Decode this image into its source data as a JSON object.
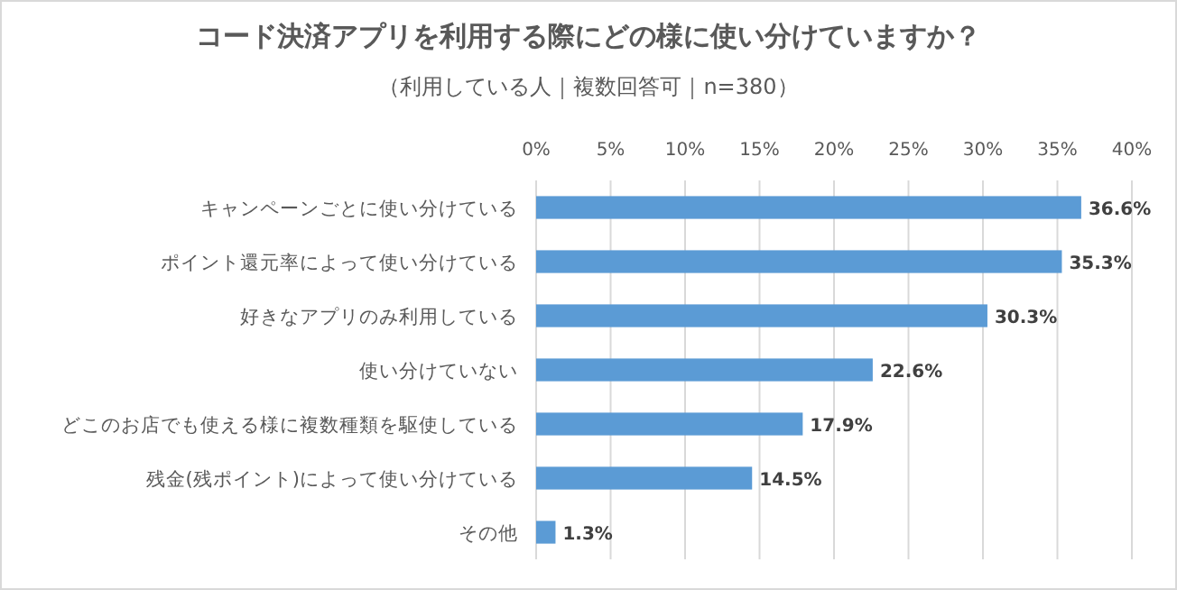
{
  "chart_data": {
    "type": "bar",
    "orientation": "horizontal",
    "title": "コード決済アプリを利用する際にどの様に使い分けていますか？",
    "subtitle": "（利用している人｜複数回答可｜n=380）",
    "categories": [
      "キャンペーンごとに使い分けている",
      "ポイント還元率によって使い分けている",
      "好きなアプリのみ利用している",
      "使い分けていない",
      "どこのお店でも使える様に複数種類を駆使している",
      "残金(残ポイント)によって使い分けている",
      "その他"
    ],
    "values": [
      36.6,
      35.3,
      30.3,
      22.6,
      17.9,
      14.5,
      1.3
    ],
    "value_labels": [
      "36.6%",
      "35.3%",
      "30.3%",
      "22.6%",
      "17.9%",
      "14.5%",
      "1.3%"
    ],
    "color": "#5b9bd5",
    "xlim": [
      0,
      40
    ],
    "xticks": [
      {
        "value": 0,
        "label": "0%"
      },
      {
        "value": 5,
        "label": "5%"
      },
      {
        "value": 10,
        "label": "10%"
      },
      {
        "value": 15,
        "label": "15%"
      },
      {
        "value": 20,
        "label": "20%"
      },
      {
        "value": 25,
        "label": "25%"
      },
      {
        "value": 30,
        "label": "30%"
      },
      {
        "value": 35,
        "label": "35%"
      },
      {
        "value": 40,
        "label": "40%"
      }
    ],
    "grid": "x"
  }
}
